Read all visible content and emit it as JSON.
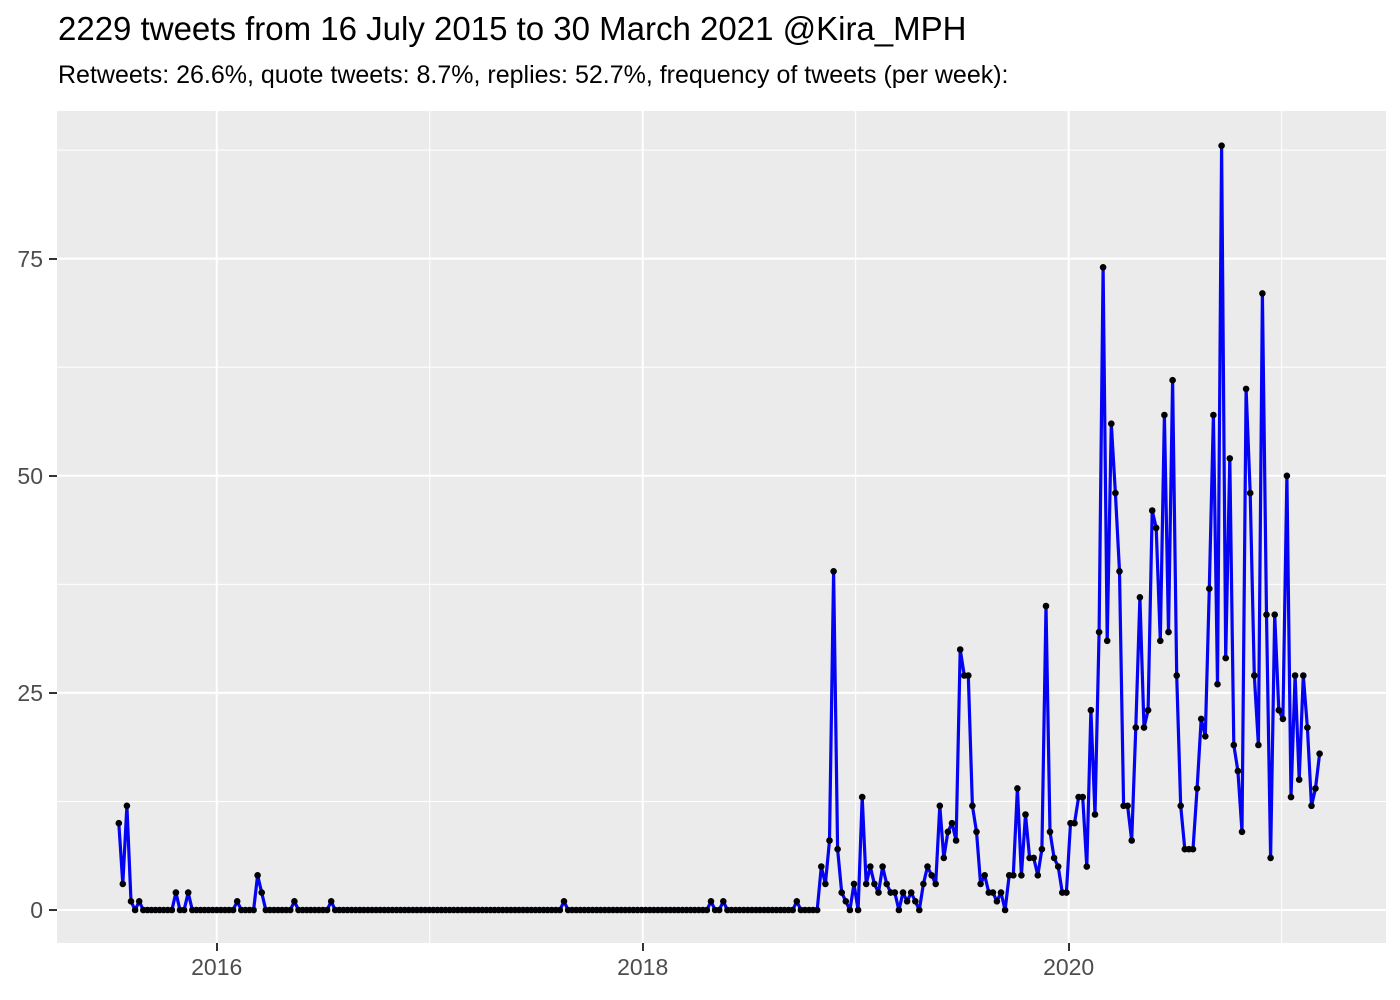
{
  "header": {
    "title": "2229 tweets from 16 July 2015 to 30 March 2021 @Kira_MPH",
    "subtitle": "Retweets: 26.6%, quote tweets: 8.7%, replies: 52.7%, frequency of tweets (per week):"
  },
  "chart_data": {
    "type": "line",
    "title": "2229 tweets from 16 July 2015 to 30 March 2021 @Kira_MPH",
    "subtitle": "Retweets: 26.6%, quote tweets: 8.7%, replies: 52.7%, frequency of tweets (per week):",
    "xlabel": "",
    "ylabel": "",
    "grid": true,
    "legend": "none",
    "x_axis": {
      "domain": [
        2015.25,
        2021.49
      ],
      "ticks": [
        2016,
        2018,
        2020
      ],
      "tick_labels": [
        "2016",
        "2018",
        "2020"
      ],
      "minor_ticks": [
        2017,
        2019,
        2021
      ]
    },
    "y_axis": {
      "domain": [
        -3.8,
        92.0
      ],
      "ticks": [
        0,
        25,
        50,
        75
      ],
      "tick_labels": [
        "0",
        "25",
        "50",
        "75"
      ],
      "minor_ticks": [
        12.5,
        37.5,
        62.5,
        87.5
      ]
    },
    "series": [
      {
        "name": "tweets per week",
        "start_date": "2015-07-16",
        "interval": "weekly",
        "start_decimal_year": 2015.54,
        "step_decimal_year": 0.019178,
        "values": [
          10,
          3,
          12,
          1,
          0,
          1,
          0,
          0,
          0,
          0,
          0,
          0,
          0,
          0,
          2,
          0,
          0,
          2,
          0,
          0,
          0,
          0,
          0,
          0,
          0,
          0,
          0,
          0,
          0,
          1,
          0,
          0,
          0,
          0,
          4,
          2,
          0,
          0,
          0,
          0,
          0,
          0,
          0,
          1,
          0,
          0,
          0,
          0,
          0,
          0,
          0,
          0,
          1,
          0,
          0,
          0,
          0,
          0,
          0,
          0,
          0,
          0,
          0,
          0,
          0,
          0,
          0,
          0,
          0,
          0,
          0,
          0,
          0,
          0,
          0,
          0,
          0,
          0,
          0,
          0,
          0,
          0,
          0,
          0,
          0,
          0,
          0,
          0,
          0,
          0,
          0,
          0,
          0,
          0,
          0,
          0,
          0,
          0,
          0,
          0,
          0,
          0,
          0,
          0,
          0,
          0,
          0,
          0,
          0,
          1,
          0,
          0,
          0,
          0,
          0,
          0,
          0,
          0,
          0,
          0,
          0,
          0,
          0,
          0,
          0,
          0,
          0,
          0,
          0,
          0,
          0,
          0,
          0,
          0,
          0,
          0,
          0,
          0,
          0,
          0,
          0,
          0,
          0,
          0,
          0,
          1,
          0,
          0,
          1,
          0,
          0,
          0,
          0,
          0,
          0,
          0,
          0,
          0,
          0,
          0,
          0,
          0,
          0,
          0,
          0,
          0,
          1,
          0,
          0,
          0,
          0,
          0,
          5,
          3,
          8,
          39,
          7,
          2,
          1,
          0,
          3,
          0,
          13,
          3,
          5,
          3,
          2,
          5,
          3,
          2,
          2,
          0,
          2,
          1,
          2,
          1,
          0,
          3,
          5,
          4,
          3,
          12,
          6,
          9,
          10,
          8,
          30,
          27,
          27,
          12,
          9,
          3,
          4,
          2,
          2,
          1,
          2,
          0,
          4,
          4,
          14,
          4,
          11,
          6,
          6,
          4,
          7,
          35,
          9,
          6,
          5,
          2,
          2,
          10,
          10,
          13,
          13,
          5,
          23,
          11,
          32,
          74,
          31,
          56,
          48,
          39,
          12,
          12,
          8,
          21,
          36,
          21,
          23,
          46,
          44,
          31,
          57,
          32,
          61,
          27,
          12,
          7,
          7,
          7,
          14,
          22,
          20,
          37,
          57,
          26,
          88,
          29,
          52,
          19,
          16,
          9,
          60,
          48,
          27,
          19,
          71,
          34,
          6,
          34,
          23,
          22,
          50,
          13,
          27,
          15,
          27,
          21,
          12,
          14,
          18
        ]
      }
    ],
    "style": {
      "line_color": "#0404F2",
      "point_color": "#000005",
      "panel_background": "#EBEBEB",
      "grid_color": "#FFFFFF",
      "axis_text_color": "#4D4D4D",
      "tick_mark_color": "#333333",
      "title_color": "#000000"
    }
  }
}
